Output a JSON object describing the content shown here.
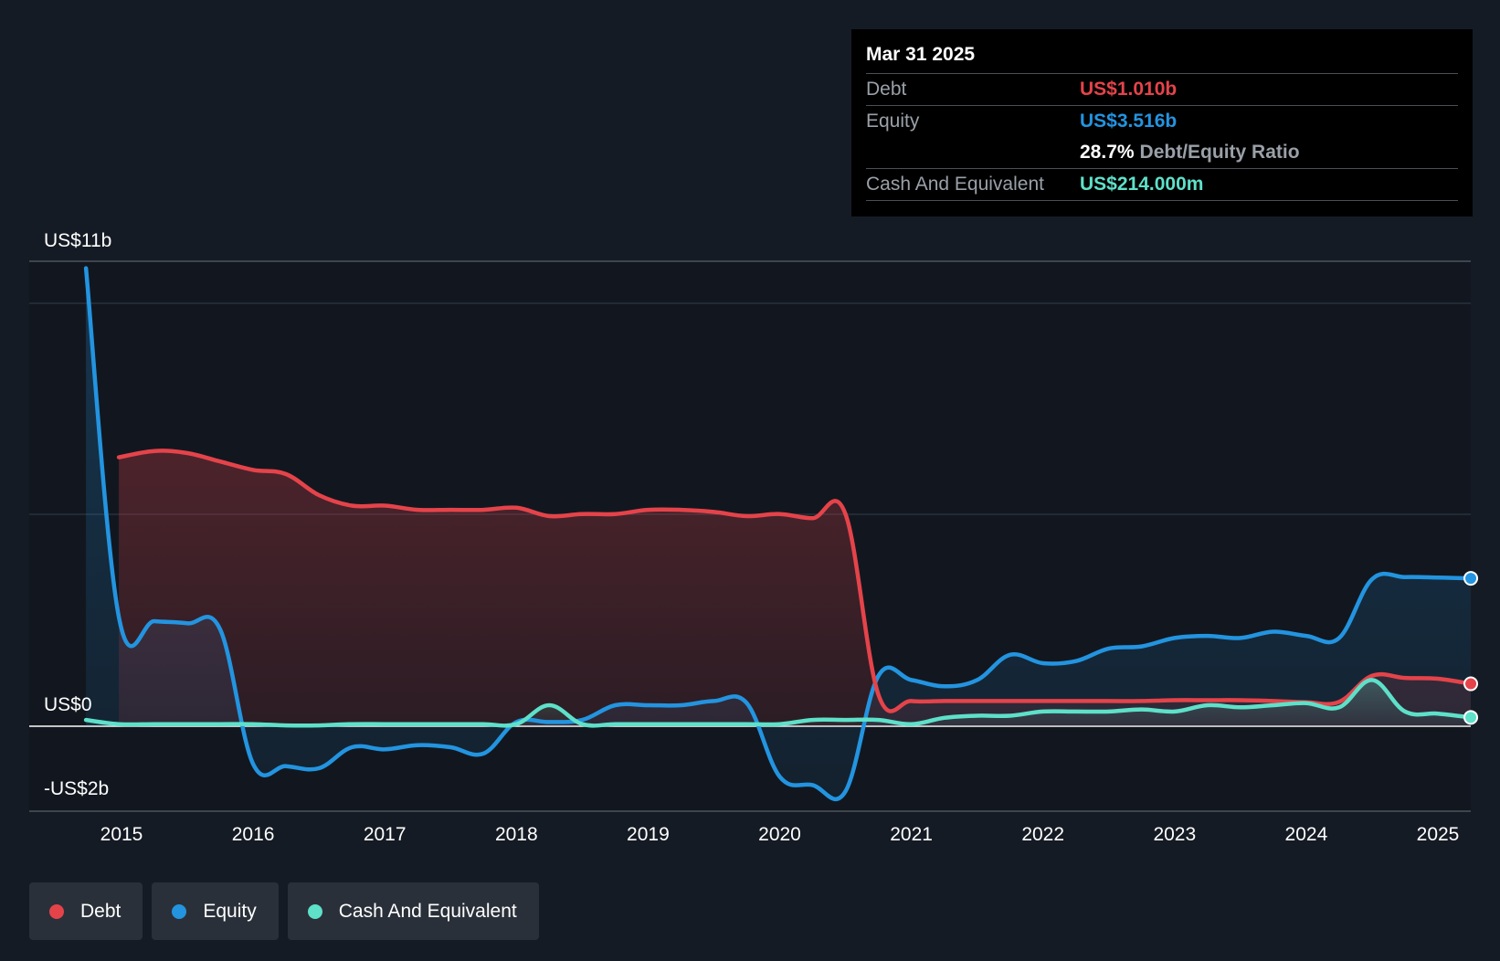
{
  "tooltip": {
    "date": "Mar 31 2025",
    "debt_label": "Debt",
    "debt_value": "US$1.010b",
    "equity_label": "Equity",
    "equity_value": "US$3.516b",
    "ratio_value": "28.7%",
    "ratio_label": "Debt/Equity Ratio",
    "cash_label": "Cash And Equivalent",
    "cash_value": "US$214.000m"
  },
  "legend": [
    {
      "label": "Debt",
      "color": "#e5434a"
    },
    {
      "label": "Equity",
      "color": "#2394e0"
    },
    {
      "label": "Cash And Equivalent",
      "color": "#5ee0c9"
    }
  ],
  "chart_data": {
    "type": "line",
    "x_tick_labels": [
      "2015",
      "2016",
      "2017",
      "2018",
      "2019",
      "2020",
      "2021",
      "2022",
      "2023",
      "2024",
      "2025"
    ],
    "y_labels": {
      "top": "US$11b",
      "zero": "US$0",
      "bottom": "-US$2b"
    },
    "ylim": [
      -2,
      11
    ],
    "xlim": [
      2014.7,
      2025.25
    ],
    "colors": {
      "debt": "#e5434a",
      "equity": "#2394e0",
      "cash": "#5ee0c9"
    },
    "series": [
      {
        "name": "Debt",
        "x": [
          2014.98,
          2015.25,
          2015.5,
          2015.75,
          2016.0,
          2016.25,
          2016.5,
          2016.75,
          2017.0,
          2017.25,
          2017.5,
          2017.75,
          2018.0,
          2018.25,
          2018.5,
          2018.75,
          2019.0,
          2019.25,
          2019.5,
          2019.75,
          2020.0,
          2020.25,
          2020.5,
          2020.75,
          2021.0,
          2021.25,
          2021.5,
          2021.75,
          2022.0,
          2022.25,
          2022.5,
          2022.75,
          2023.0,
          2023.25,
          2023.5,
          2023.75,
          2024.0,
          2024.25,
          2024.5,
          2024.75,
          2025.0,
          2025.25
        ],
        "values": [
          6.4,
          6.55,
          6.5,
          6.3,
          6.1,
          6.0,
          5.5,
          5.25,
          5.25,
          5.15,
          5.15,
          5.15,
          5.2,
          5.0,
          5.05,
          5.05,
          5.15,
          5.15,
          5.1,
          5.0,
          5.05,
          4.95,
          5.05,
          0.75,
          0.6,
          0.6,
          0.6,
          0.6,
          0.6,
          0.6,
          0.6,
          0.6,
          0.62,
          0.62,
          0.62,
          0.6,
          0.57,
          0.58,
          1.2,
          1.15,
          1.13,
          1.01
        ]
      },
      {
        "name": "Equity",
        "x": [
          2014.73,
          2014.98,
          2015.25,
          2015.5,
          2015.75,
          2016.0,
          2016.25,
          2016.5,
          2016.75,
          2017.0,
          2017.25,
          2017.5,
          2017.75,
          2018.0,
          2018.25,
          2018.5,
          2018.75,
          2019.0,
          2019.25,
          2019.5,
          2019.75,
          2020.0,
          2020.25,
          2020.5,
          2020.75,
          2021.0,
          2021.25,
          2021.5,
          2021.75,
          2022.0,
          2022.25,
          2022.5,
          2022.75,
          2023.0,
          2023.25,
          2023.5,
          2023.75,
          2024.0,
          2024.25,
          2024.5,
          2024.75,
          2025.0,
          2025.25
        ],
        "values": [
          10.9,
          2.6,
          2.5,
          2.45,
          2.3,
          -0.9,
          -0.95,
          -1.0,
          -0.5,
          -0.55,
          -0.45,
          -0.5,
          -0.65,
          0.1,
          0.1,
          0.15,
          0.5,
          0.5,
          0.5,
          0.6,
          0.55,
          -1.2,
          -1.4,
          -1.55,
          1.2,
          1.1,
          0.95,
          1.1,
          1.7,
          1.5,
          1.55,
          1.85,
          1.9,
          2.1,
          2.15,
          2.1,
          2.25,
          2.15,
          2.1,
          3.5,
          3.55,
          3.54,
          3.52
        ]
      },
      {
        "name": "Cash And Equivalent",
        "x": [
          2014.73,
          2014.98,
          2015.25,
          2015.5,
          2015.75,
          2016.0,
          2016.25,
          2016.5,
          2016.75,
          2017.0,
          2017.25,
          2017.5,
          2017.75,
          2018.0,
          2018.25,
          2018.5,
          2018.75,
          2019.0,
          2019.25,
          2019.5,
          2019.75,
          2020.0,
          2020.25,
          2020.5,
          2020.75,
          2021.0,
          2021.25,
          2021.5,
          2021.75,
          2022.0,
          2022.25,
          2022.5,
          2022.75,
          2023.0,
          2023.25,
          2023.5,
          2023.75,
          2024.0,
          2024.25,
          2024.5,
          2024.75,
          2025.0,
          2025.25
        ],
        "values": [
          0.15,
          0.05,
          0.05,
          0.05,
          0.05,
          0.05,
          0.02,
          0.02,
          0.05,
          0.05,
          0.05,
          0.05,
          0.05,
          0.05,
          0.5,
          0.05,
          0.05,
          0.05,
          0.05,
          0.05,
          0.05,
          0.05,
          0.15,
          0.15,
          0.15,
          0.05,
          0.2,
          0.25,
          0.25,
          0.35,
          0.35,
          0.35,
          0.4,
          0.35,
          0.5,
          0.45,
          0.5,
          0.55,
          0.45,
          1.1,
          0.35,
          0.3,
          0.21
        ]
      }
    ],
    "grid": true,
    "legend_position": "bottom-left"
  }
}
